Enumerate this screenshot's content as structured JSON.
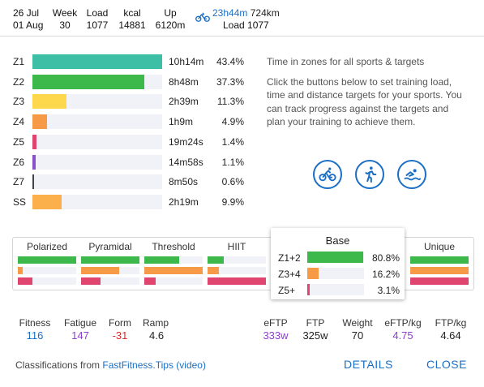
{
  "header": {
    "date_start": "26 Jul",
    "date_end": "01 Aug",
    "week_label": "Week",
    "week_value": "30",
    "load_label": "Load",
    "load_value": "1077",
    "kcal_label": "kcal",
    "kcal_value": "14881",
    "up_label": "Up",
    "up_value": "6120m",
    "sport_icon": "bike-icon",
    "time": "23h44m",
    "distance": "724km",
    "load_line": "Load 1077"
  },
  "zones": [
    {
      "label": "Z1",
      "time": "10h14m",
      "pct": "43.4%",
      "fraction": 0.434,
      "color": "#3dbfa6"
    },
    {
      "label": "Z2",
      "time": "8h48m",
      "pct": "37.3%",
      "fraction": 0.373,
      "color": "#3cb94a"
    },
    {
      "label": "Z3",
      "time": "2h39m",
      "pct": "11.3%",
      "fraction": 0.113,
      "color": "#fdd84c"
    },
    {
      "label": "Z4",
      "time": "1h9m",
      "pct": "4.9%",
      "fraction": 0.049,
      "color": "#f79a48"
    },
    {
      "label": "Z5",
      "time": "19m24s",
      "pct": "1.4%",
      "fraction": 0.014,
      "color": "#e04570"
    },
    {
      "label": "Z6",
      "time": "14m58s",
      "pct": "1.1%",
      "fraction": 0.011,
      "color": "#8b4fcf"
    },
    {
      "label": "Z7",
      "time": "8m50s",
      "pct": "0.6%",
      "fraction": 0.006,
      "color": "#444444"
    },
    {
      "label": "SS",
      "time": "2h19m",
      "pct": "9.9%",
      "fraction": 0.099,
      "color": "#fbb04c"
    }
  ],
  "info": {
    "line1": "Time in zones for all sports & targets",
    "line2": "Click the buttons below to set training load, time and distance targets for your sports. You can track progress against the targets and plan your training to achieve them."
  },
  "sport_buttons": [
    {
      "icon": "bike-icon"
    },
    {
      "icon": "run-icon"
    },
    {
      "icon": "swim-icon"
    }
  ],
  "classifications": [
    {
      "title": "Polarized",
      "bars": [
        {
          "f": 1.0,
          "c": "#3cb94a"
        },
        {
          "f": 0.08,
          "c": "#f79a48"
        },
        {
          "f": 0.25,
          "c": "#e04570"
        }
      ]
    },
    {
      "title": "Pyramidal",
      "bars": [
        {
          "f": 1.0,
          "c": "#3cb94a"
        },
        {
          "f": 0.65,
          "c": "#f79a48"
        },
        {
          "f": 0.33,
          "c": "#e04570"
        }
      ]
    },
    {
      "title": "Threshold",
      "bars": [
        {
          "f": 0.6,
          "c": "#3cb94a"
        },
        {
          "f": 1.0,
          "c": "#f79a48"
        },
        {
          "f": 0.2,
          "c": "#e04570"
        }
      ]
    },
    {
      "title": "HIIT",
      "bars": [
        {
          "f": 0.28,
          "c": "#3cb94a"
        },
        {
          "f": 0.2,
          "c": "#f79a48"
        },
        {
          "f": 1.0,
          "c": "#e04570"
        }
      ]
    },
    {
      "title": "Unique",
      "bars": [
        {
          "f": 1.0,
          "c": "#3cb94a"
        },
        {
          "f": 1.0,
          "c": "#f79a48"
        },
        {
          "f": 1.0,
          "c": "#e04570"
        }
      ]
    }
  ],
  "popup": {
    "title": "Base",
    "rows": [
      {
        "label": "Z1+2",
        "pct": "80.8%",
        "fraction": 0.808,
        "color": "#3cb94a"
      },
      {
        "label": "Z3+4",
        "pct": "16.2%",
        "fraction": 0.162,
        "color": "#f79a48"
      },
      {
        "label": "Z5+",
        "pct": "3.1%",
        "fraction": 0.031,
        "color": "#e04570"
      }
    ]
  },
  "metrics": {
    "fitness_label": "Fitness",
    "fitness_value": "116",
    "fitness_color": "#1a6fc4",
    "fatigue_label": "Fatigue",
    "fatigue_value": "147",
    "fatigue_color": "#8b3fcf",
    "form_label": "Form",
    "form_value": "-31",
    "form_color": "#d92b2b",
    "ramp_label": "Ramp",
    "ramp_value": "4.6",
    "eftp_label": "eFTP",
    "eftp_value": "333w",
    "eftp_color": "#8b3fcf",
    "ftp_label": "FTP",
    "ftp_value": "325w",
    "weight_label": "Weight",
    "weight_value": "70",
    "eftpkg_label": "eFTP/kg",
    "eftpkg_value": "4.75",
    "eftpkg_color": "#8b3fcf",
    "ftpkg_label": "FTP/kg",
    "ftpkg_value": "4.64"
  },
  "footer": {
    "prefix": "Classifications from ",
    "link_text": "FastFitness.Tips",
    "video_text": "(video)",
    "details_label": "DETAILS",
    "close_label": "CLOSE"
  },
  "colors": {
    "accent": "#1a6fc4"
  }
}
